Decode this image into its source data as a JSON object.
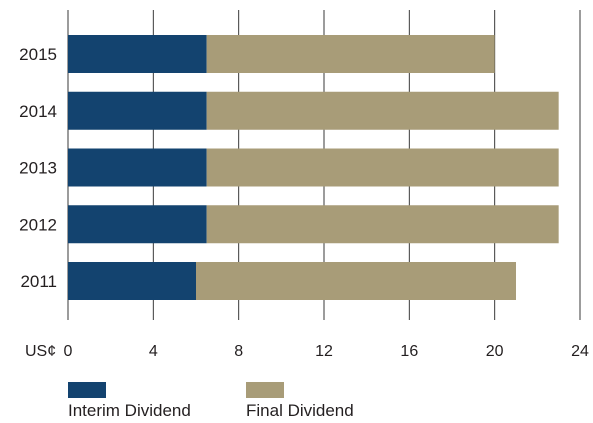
{
  "chart_data": {
    "type": "bar",
    "orientation": "horizontal",
    "stacked": true,
    "categories": [
      "2015",
      "2014",
      "2013",
      "2012",
      "2011"
    ],
    "series": [
      {
        "name": "Interim Dividend",
        "color": "#13436f",
        "values": [
          6.5,
          6.5,
          6.5,
          6.5,
          6.0
        ]
      },
      {
        "name": "Final Dividend",
        "color": "#a89c78",
        "values": [
          13.5,
          16.5,
          16.5,
          16.5,
          15.0
        ]
      }
    ],
    "xlabel": "US¢",
    "xlim": [
      0,
      24
    ],
    "xticks": [
      "0",
      "4",
      "8",
      "12",
      "16",
      "20",
      "24"
    ],
    "grid": true,
    "legend_position": "bottom-left"
  }
}
